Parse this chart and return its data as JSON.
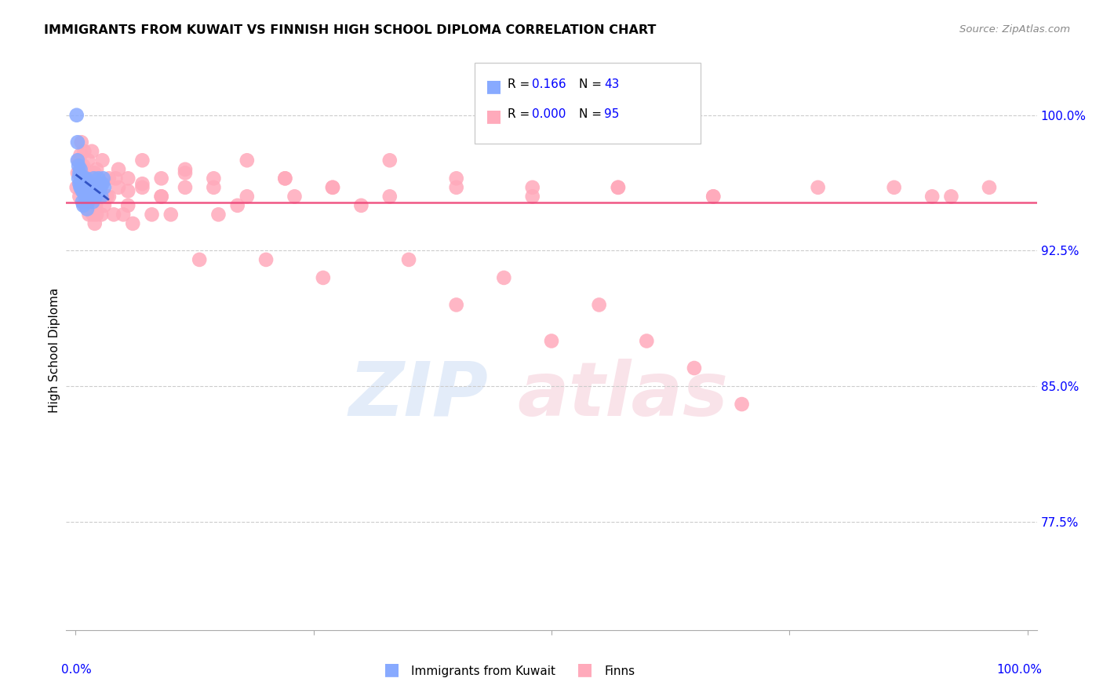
{
  "title": "IMMIGRANTS FROM KUWAIT VS FINNISH HIGH SCHOOL DIPLOMA CORRELATION CHART",
  "source": "Source: ZipAtlas.com",
  "ylabel": "High School Diploma",
  "legend_label1": "Immigrants from Kuwait",
  "legend_label2": "Finns",
  "ytick_labels": [
    "100.0%",
    "92.5%",
    "85.0%",
    "77.5%"
  ],
  "ytick_values": [
    1.0,
    0.925,
    0.85,
    0.775
  ],
  "xlim": [
    -0.01,
    1.01
  ],
  "ylim": [
    0.715,
    1.025
  ],
  "blue_color": "#88aaff",
  "pink_color": "#ffaabb",
  "blue_line_color": "#2244bb",
  "pink_line_color": "#ee4477",
  "grid_color": "#cccccc",
  "background_color": "#ffffff",
  "kuwait_x": [
    0.001,
    0.002,
    0.002,
    0.003,
    0.003,
    0.004,
    0.004,
    0.005,
    0.005,
    0.006,
    0.006,
    0.007,
    0.007,
    0.008,
    0.008,
    0.008,
    0.009,
    0.009,
    0.01,
    0.01,
    0.011,
    0.011,
    0.012,
    0.012,
    0.013,
    0.013,
    0.014,
    0.015,
    0.016,
    0.017,
    0.018,
    0.019,
    0.02,
    0.021,
    0.022,
    0.023,
    0.024,
    0.025,
    0.026,
    0.027,
    0.028,
    0.029,
    0.03
  ],
  "kuwait_y": [
    1.0,
    0.985,
    0.975,
    0.972,
    0.965,
    0.968,
    0.962,
    0.97,
    0.96,
    0.965,
    0.96,
    0.958,
    0.952,
    0.965,
    0.958,
    0.95,
    0.965,
    0.958,
    0.962,
    0.955,
    0.965,
    0.958,
    0.962,
    0.948,
    0.96,
    0.952,
    0.958,
    0.962,
    0.955,
    0.96,
    0.952,
    0.965,
    0.958,
    0.955,
    0.96,
    0.962,
    0.965,
    0.958,
    0.96,
    0.955,
    0.962,
    0.965,
    0.96
  ],
  "finns_x": [
    0.001,
    0.004,
    0.007,
    0.01,
    0.012,
    0.014,
    0.015,
    0.016,
    0.017,
    0.018,
    0.019,
    0.02,
    0.021,
    0.022,
    0.023,
    0.025,
    0.027,
    0.03,
    0.035,
    0.04,
    0.045,
    0.05,
    0.055,
    0.06,
    0.07,
    0.08,
    0.09,
    0.1,
    0.115,
    0.13,
    0.15,
    0.17,
    0.2,
    0.23,
    0.26,
    0.3,
    0.35,
    0.4,
    0.45,
    0.5,
    0.55,
    0.6,
    0.65,
    0.7,
    0.86,
    0.92,
    0.003,
    0.006,
    0.009,
    0.013,
    0.017,
    0.022,
    0.028,
    0.035,
    0.045,
    0.055,
    0.07,
    0.09,
    0.115,
    0.145,
    0.18,
    0.22,
    0.27,
    0.33,
    0.4,
    0.48,
    0.57,
    0.67,
    0.002,
    0.005,
    0.008,
    0.011,
    0.015,
    0.02,
    0.026,
    0.033,
    0.042,
    0.055,
    0.07,
    0.09,
    0.115,
    0.145,
    0.18,
    0.22,
    0.27,
    0.33,
    0.4,
    0.48,
    0.57,
    0.67,
    0.78,
    0.9,
    0.96
  ],
  "finns_y": [
    0.96,
    0.955,
    0.97,
    0.95,
    0.965,
    0.945,
    0.96,
    0.955,
    0.95,
    0.945,
    0.96,
    0.94,
    0.95,
    0.945,
    0.955,
    0.96,
    0.945,
    0.95,
    0.955,
    0.945,
    0.96,
    0.945,
    0.95,
    0.94,
    0.96,
    0.945,
    0.955,
    0.945,
    0.96,
    0.92,
    0.945,
    0.95,
    0.92,
    0.955,
    0.91,
    0.95,
    0.92,
    0.895,
    0.91,
    0.875,
    0.895,
    0.875,
    0.86,
    0.84,
    0.96,
    0.955,
    0.975,
    0.985,
    0.98,
    0.975,
    0.98,
    0.97,
    0.975,
    0.965,
    0.97,
    0.965,
    0.975,
    0.965,
    0.97,
    0.965,
    0.975,
    0.965,
    0.96,
    0.975,
    0.965,
    0.96,
    0.96,
    0.955,
    0.968,
    0.978,
    0.972,
    0.965,
    0.958,
    0.968,
    0.96,
    0.955,
    0.965,
    0.958,
    0.962,
    0.955,
    0.968,
    0.96,
    0.955,
    0.965,
    0.96,
    0.955,
    0.96,
    0.955,
    0.96,
    0.955,
    0.96,
    0.955,
    0.96
  ]
}
